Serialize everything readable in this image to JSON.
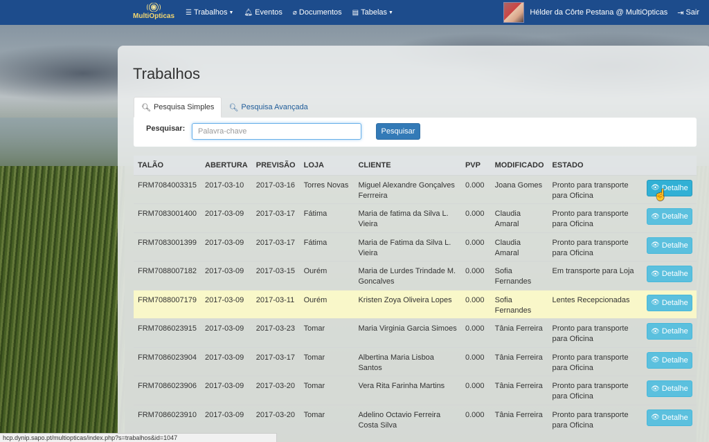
{
  "navbar": {
    "brand": "MultiOpticas",
    "menu": [
      {
        "label": "Trabalhos",
        "icon": "list-icon",
        "dropdown": true
      },
      {
        "label": "Eventos",
        "icon": "bell-icon",
        "dropdown": false
      },
      {
        "label": "Documentos",
        "icon": "paperclip-icon",
        "dropdown": false
      },
      {
        "label": "Tabelas",
        "icon": "table-icon",
        "dropdown": true
      }
    ],
    "user": "Hélder da Côrte Pestana @ MultiOpticas",
    "logout": "Sair"
  },
  "page": {
    "title": "Trabalhos"
  },
  "tabs": [
    {
      "label": "Pesquisa Simples",
      "active": true
    },
    {
      "label": "Pesquisa Avançada",
      "active": false
    }
  ],
  "search": {
    "label": "Pesquisar:",
    "placeholder": "Palavra-chave",
    "value": "",
    "button": "Pesquisar"
  },
  "table": {
    "headers": [
      "TALÃO",
      "ABERTURA",
      "PREVISÃO",
      "LOJA",
      "CLIENTE",
      "PVP",
      "MODIFICADO",
      "ESTADO"
    ],
    "action_label": "Detalhe",
    "rows": [
      {
        "talao": "FRM7084003315",
        "abertura": "2017-03-10",
        "previsao": "2017-03-16",
        "loja": "Torres Novas",
        "cliente": "Miguel Alexandre Gonçalves Ferrreira",
        "pvp": "0.000",
        "modificado": "Joana Gomes",
        "estado": "Pronto para transporte para Oficina"
      },
      {
        "talao": "FRM7083001400",
        "abertura": "2017-03-09",
        "previsao": "2017-03-17",
        "loja": "Fátima",
        "cliente": "Maria de fatima da Silva L. Vieira",
        "pvp": "0.000",
        "modificado": "Claudia Amaral",
        "estado": "Pronto para transporte para Oficina"
      },
      {
        "talao": "FRM7083001399",
        "abertura": "2017-03-09",
        "previsao": "2017-03-17",
        "loja": "Fátima",
        "cliente": "Maria de Fatima da Silva L. Vieira",
        "pvp": "0.000",
        "modificado": "Claudia Amaral",
        "estado": "Pronto para transporte para Oficina"
      },
      {
        "talao": "FRM7088007182",
        "abertura": "2017-03-09",
        "previsao": "2017-03-15",
        "loja": "Ourém",
        "cliente": "Maria de Lurdes Trindade M. Goncalves",
        "pvp": "0.000",
        "modificado": "Sofia Fernandes",
        "estado": "Em transporte para Loja"
      },
      {
        "talao": "FRM7088007179",
        "abertura": "2017-03-09",
        "previsao": "2017-03-11",
        "loja": "Ourém",
        "cliente": "Kristen Zoya Oliveira Lopes",
        "pvp": "0.000",
        "modificado": "Sofia Fernandes",
        "estado": "Lentes Recepcionadas",
        "highlight": true
      },
      {
        "talao": "FRM7086023915",
        "abertura": "2017-03-09",
        "previsao": "2017-03-23",
        "loja": "Tomar",
        "cliente": "Maria Virginia Garcia Simoes",
        "pvp": "0.000",
        "modificado": "Tânia Ferreira",
        "estado": "Pronto para transporte para Oficina"
      },
      {
        "talao": "FRM7086023904",
        "abertura": "2017-03-09",
        "previsao": "2017-03-17",
        "loja": "Tomar",
        "cliente": "Albertina Maria Lisboa Santos",
        "pvp": "0.000",
        "modificado": "Tânia Ferreira",
        "estado": "Pronto para transporte para Oficina"
      },
      {
        "talao": "FRM7086023906",
        "abertura": "2017-03-09",
        "previsao": "2017-03-20",
        "loja": "Tomar",
        "cliente": "Vera Rita Farinha Martins",
        "pvp": "0.000",
        "modificado": "Tânia Ferreira",
        "estado": "Pronto para transporte para Oficina"
      },
      {
        "talao": "FRM7086023910",
        "abertura": "2017-03-09",
        "previsao": "2017-03-20",
        "loja": "Tomar",
        "cliente": "Adelino Octavio Ferreira Costa Silva",
        "pvp": "0.000",
        "modificado": "Tânia Ferreira",
        "estado": "Pronto para transporte para Oficina"
      }
    ]
  },
  "status_url": "hcp.dynip.sapo.pt/multiopticas/index.php?s=trabalhos&id=1047"
}
